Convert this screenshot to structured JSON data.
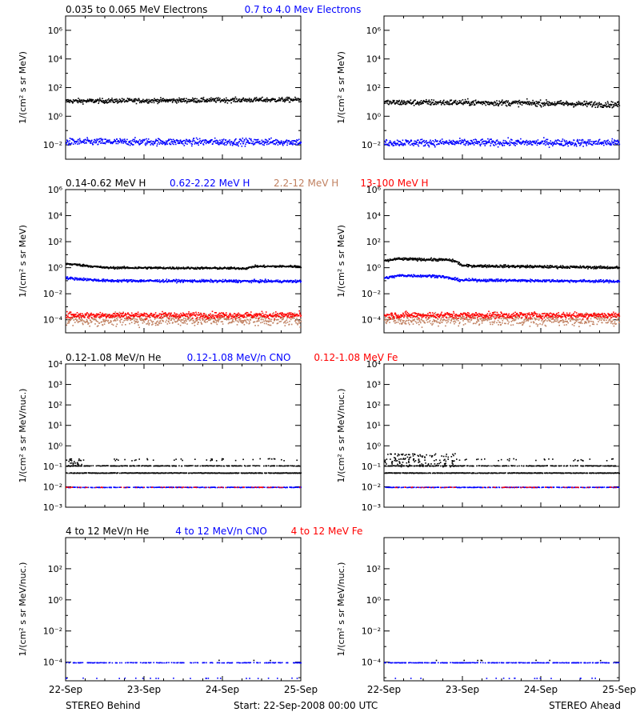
{
  "colors": {
    "black": "#000000",
    "blue": "#0000ff",
    "brown": "#c08060",
    "red": "#ff0000"
  },
  "footer": {
    "left": "STEREO Behind",
    "center": "Start: 22-Sep-2008 00:00 UTC",
    "right": "STEREO Ahead"
  },
  "chart_data": [
    {
      "type": "scatter",
      "id": "electrons",
      "legend": [
        {
          "text": "0.035 to 0.065 MeV Electrons",
          "color": "#000000"
        },
        {
          "text": "0.7 to 4.0 Mev Electrons",
          "color": "#0000ff"
        }
      ],
      "ylabel": "1/(cm² s sr MeV)",
      "yscale": "log",
      "ylim_exp": [
        -3,
        7
      ],
      "yticks_exp": [
        -2,
        0,
        2,
        4,
        6
      ],
      "xlim": [
        "22-Sep",
        "25-Sep"
      ],
      "xticks": [
        "22-Sep",
        "23-Sep",
        "24-Sep",
        "25-Sep"
      ],
      "panels": [
        {
          "name": "STEREO Behind",
          "series": [
            {
              "color": "#000000",
              "profile_x": [
                0,
                3
              ],
              "profile_log10": [
                1.1,
                1.2
              ],
              "scatter": 0.08,
              "style": "band"
            },
            {
              "color": "#0000ff",
              "profile_x": [
                0,
                3
              ],
              "profile_log10": [
                -1.75,
                -1.75
              ],
              "scatter": 0.12,
              "style": "band"
            }
          ]
        },
        {
          "name": "STEREO Ahead",
          "series": [
            {
              "color": "#000000",
              "profile_x": [
                0,
                1,
                2,
                3
              ],
              "profile_log10": [
                1.0,
                1.0,
                0.95,
                0.85
              ],
              "scatter": 0.1,
              "style": "band"
            },
            {
              "color": "#0000ff",
              "profile_x": [
                0,
                3
              ],
              "profile_log10": [
                -1.8,
                -1.8
              ],
              "scatter": 0.12,
              "style": "band"
            }
          ]
        }
      ]
    },
    {
      "type": "scatter",
      "id": "protons",
      "legend": [
        {
          "text": "0.14-0.62 MeV H",
          "color": "#000000"
        },
        {
          "text": "0.62-2.22 MeV H",
          "color": "#0000ff"
        },
        {
          "text": "2.2-12 MeV H",
          "color": "#c08060"
        },
        {
          "text": "13-100 MeV H",
          "color": "#ff0000"
        }
      ],
      "ylabel": "1/(cm² s sr MeV)",
      "yscale": "log",
      "ylim_exp": [
        -5,
        6
      ],
      "yticks_exp": [
        -4,
        -2,
        0,
        2,
        4,
        6
      ],
      "xlim": [
        "22-Sep",
        "25-Sep"
      ],
      "xticks": [
        "22-Sep",
        "23-Sep",
        "24-Sep",
        "25-Sep"
      ],
      "panels": [
        {
          "name": "STEREO Behind",
          "series": [
            {
              "color": "#000000",
              "profile_x": [
                0,
                0.1,
                0.5,
                2.3,
                2.4,
                3
              ],
              "profile_log10": [
                0.35,
                0.3,
                0.05,
                0.0,
                0.15,
                0.15
              ],
              "scatter": 0.04,
              "style": "band"
            },
            {
              "color": "#0000ff",
              "profile_x": [
                0,
                0.5,
                3
              ],
              "profile_log10": [
                -0.75,
                -0.95,
                -1.0
              ],
              "scatter": 0.05,
              "style": "band"
            },
            {
              "color": "#c08060",
              "profile_x": [
                0,
                3
              ],
              "profile_log10": [
                -3.95,
                -3.95
              ],
              "scatter": 0.22,
              "style": "band"
            },
            {
              "color": "#ff0000",
              "profile_x": [
                0,
                3
              ],
              "profile_log10": [
                -3.6,
                -3.6
              ],
              "scatter": 0.12,
              "style": "band"
            }
          ]
        },
        {
          "name": "STEREO Ahead",
          "series": [
            {
              "color": "#000000",
              "profile_x": [
                0,
                0.15,
                0.8,
                0.9,
                1.0,
                3
              ],
              "profile_log10": [
                0.55,
                0.72,
                0.65,
                0.55,
                0.2,
                0.05
              ],
              "scatter": 0.05,
              "style": "band"
            },
            {
              "color": "#0000ff",
              "profile_x": [
                0,
                0.2,
                0.7,
                0.95,
                3
              ],
              "profile_log10": [
                -0.75,
                -0.55,
                -0.6,
                -0.9,
                -1.0
              ],
              "scatter": 0.05,
              "style": "band"
            },
            {
              "color": "#c08060",
              "profile_x": [
                0,
                3
              ],
              "profile_log10": [
                -3.95,
                -3.95
              ],
              "scatter": 0.22,
              "style": "band"
            },
            {
              "color": "#ff0000",
              "profile_x": [
                0,
                3
              ],
              "profile_log10": [
                -3.6,
                -3.6
              ],
              "scatter": 0.12,
              "style": "band"
            }
          ]
        }
      ]
    },
    {
      "type": "scatter",
      "id": "low-energy-ions",
      "legend": [
        {
          "text": "0.12-1.08 MeV/n He",
          "color": "#000000"
        },
        {
          "text": "0.12-1.08 MeV/n CNO",
          "color": "#0000ff"
        },
        {
          "text": "0.12-1.08 MeV Fe",
          "color": "#ff0000"
        }
      ],
      "ylabel": "1/(cm² s sr MeV/nuc.)",
      "yscale": "log",
      "ylim_exp": [
        -3,
        4
      ],
      "yticks_exp": [
        -3,
        -2,
        -1,
        0,
        1,
        2,
        3,
        4
      ],
      "xlim": [
        "22-Sep",
        "25-Sep"
      ],
      "xticks": [
        "22-Sep",
        "23-Sep",
        "24-Sep",
        "25-Sep"
      ],
      "panels": [
        {
          "name": "STEREO Behind",
          "series": [
            {
              "color": "#000000",
              "levels_log10": [
                -1.3,
                -0.95
              ],
              "level_density": [
                0.75,
                0.5
              ],
              "early_cloud": {
                "x_end": 0.2,
                "log10": [
                  -1.0,
                  -0.6
                ]
              },
              "sparse_high": [
                -0.7,
                -0.6
              ],
              "style": "levels"
            },
            {
              "color": "#0000ff",
              "levels_log10": [
                -2.0
              ],
              "level_density": [
                0.55
              ],
              "style": "levels"
            },
            {
              "color": "#ff0000",
              "levels_log10": [
                -2.0
              ],
              "level_density": [
                0.12
              ],
              "style": "levels"
            }
          ]
        },
        {
          "name": "STEREO Ahead",
          "series": [
            {
              "color": "#000000",
              "levels_log10": [
                -1.3,
                -0.95
              ],
              "level_density": [
                0.75,
                0.5
              ],
              "early_cloud": {
                "x_end": 0.9,
                "log10": [
                  -1.0,
                  -0.35
                ]
              },
              "sparse_high": [
                -0.7,
                -0.6
              ],
              "style": "levels"
            },
            {
              "color": "#0000ff",
              "levels_log10": [
                -2.0
              ],
              "level_density": [
                0.55
              ],
              "style": "levels"
            },
            {
              "color": "#ff0000",
              "levels_log10": [
                -2.0
              ],
              "level_density": [
                0.12
              ],
              "style": "levels"
            }
          ]
        }
      ]
    },
    {
      "type": "scatter",
      "id": "high-energy-ions",
      "legend": [
        {
          "text": "4 to 12 MeV/n He",
          "color": "#000000"
        },
        {
          "text": "4 to 12 MeV/n CNO",
          "color": "#0000ff"
        },
        {
          "text": "4 to 12 MeV Fe",
          "color": "#ff0000"
        }
      ],
      "ylabel": "1/(cm² s sr MeV/nuc.)",
      "yscale": "log",
      "ylim_exp": [
        -5.2,
        4
      ],
      "yticks_exp": [
        -4,
        -2,
        0,
        2
      ],
      "xlim": [
        "22-Sep",
        "25-Sep"
      ],
      "xticks": [
        "22-Sep",
        "23-Sep",
        "24-Sep",
        "25-Sep"
      ],
      "panels": [
        {
          "name": "STEREO Behind",
          "series": [
            {
              "color": "#0000ff",
              "levels_log10": [
                -4.0,
                -5.0
              ],
              "level_density": [
                0.35,
                0.04
              ],
              "style": "levels"
            },
            {
              "color": "#000000",
              "levels_log10": [
                -3.85
              ],
              "level_density": [
                0.01
              ],
              "style": "levels"
            }
          ]
        },
        {
          "name": "STEREO Ahead",
          "series": [
            {
              "color": "#0000ff",
              "levels_log10": [
                -4.0,
                -5.0
              ],
              "level_density": [
                0.45,
                0.04
              ],
              "style": "levels"
            },
            {
              "color": "#000000",
              "levels_log10": [
                -3.85
              ],
              "level_density": [
                0.02
              ],
              "style": "levels"
            }
          ]
        }
      ]
    }
  ]
}
